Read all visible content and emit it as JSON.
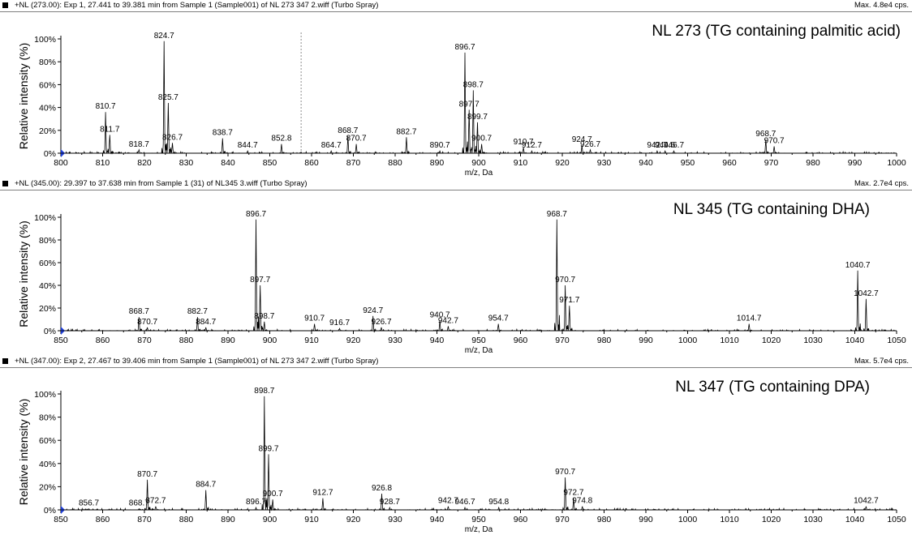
{
  "chart_data": [
    {
      "type": "line",
      "header": "+NL (273.00): Exp 1, 27.441 to 39.381 min from Sample 1 (Sample001) of NL 273 347 2.wiff (Turbo Spray)",
      "max_label": "Max. 4.8e4 cps.",
      "title": "NL 273 (TG containing palmitic acid)",
      "ylabel": "Relative intensity (%)",
      "xlabel": "m/z, Da",
      "xlim": [
        800,
        1000
      ],
      "xticks": [
        800,
        810,
        820,
        830,
        840,
        850,
        860,
        870,
        880,
        890,
        900,
        910,
        920,
        930,
        940,
        950,
        960,
        970,
        980,
        990,
        1000
      ],
      "ylim": [
        0,
        100
      ],
      "yticks": [
        "0%",
        "20%",
        "40%",
        "60%",
        "80%",
        "100%"
      ],
      "marker_x": 857.5,
      "peaks": [
        {
          "x": 810.7,
          "y": 36,
          "label": "810.7"
        },
        {
          "x": 811.7,
          "y": 16,
          "label": "811.7"
        },
        {
          "x": 818.7,
          "y": 3,
          "label": "818.7"
        },
        {
          "x": 824.7,
          "y": 98,
          "label": "824.7"
        },
        {
          "x": 825.7,
          "y": 44,
          "label": "825.7"
        },
        {
          "x": 826.7,
          "y": 9,
          "label": "826.7"
        },
        {
          "x": 838.7,
          "y": 13,
          "label": "838.7"
        },
        {
          "x": 844.7,
          "y": 2,
          "label": "844.7"
        },
        {
          "x": 852.8,
          "y": 8,
          "label": "852.8"
        },
        {
          "x": 864.7,
          "y": 2,
          "label": "864.7"
        },
        {
          "x": 868.7,
          "y": 15,
          "label": "868.7"
        },
        {
          "x": 870.7,
          "y": 8,
          "label": "870.7"
        },
        {
          "x": 882.7,
          "y": 14,
          "label": "882.7"
        },
        {
          "x": 890.7,
          "y": 2,
          "label": "890.7"
        },
        {
          "x": 896.7,
          "y": 88,
          "label": "896.7"
        },
        {
          "x": 897.7,
          "y": 38,
          "label": "897.7"
        },
        {
          "x": 898.7,
          "y": 55,
          "label": "898.7"
        },
        {
          "x": 899.7,
          "y": 27,
          "label": "899.7"
        },
        {
          "x": 900.7,
          "y": 8,
          "label": "900.7"
        },
        {
          "x": 910.7,
          "y": 5,
          "label": "910.7"
        },
        {
          "x": 912.7,
          "y": 2,
          "label": "912.7"
        },
        {
          "x": 924.7,
          "y": 7,
          "label": "924.7"
        },
        {
          "x": 926.7,
          "y": 3,
          "label": "926.7"
        },
        {
          "x": 942.7,
          "y": 2,
          "label": "942.7"
        },
        {
          "x": 944.6,
          "y": 2,
          "label": "944.6"
        },
        {
          "x": 946.7,
          "y": 2,
          "label": "946.7"
        },
        {
          "x": 968.7,
          "y": 12,
          "label": "968.7"
        },
        {
          "x": 970.7,
          "y": 6,
          "label": "970.7"
        }
      ]
    },
    {
      "type": "line",
      "header": "+NL (345.00): 29.397 to 37.638 min from Sample 1 (31) of NL345 3.wiff (Turbo Spray)",
      "max_label": "Max. 2.7e4 cps.",
      "title": "NL 345 (TG containing DHA)",
      "ylabel": "Relative intensity (%)",
      "xlabel": "m/z, Da",
      "xlim": [
        850,
        1050
      ],
      "xticks": [
        850,
        860,
        870,
        880,
        890,
        900,
        910,
        920,
        930,
        940,
        950,
        960,
        970,
        980,
        990,
        1000,
        1010,
        1020,
        1030,
        1040,
        1050
      ],
      "ylim": [
        0,
        100
      ],
      "yticks": [
        "0%",
        "20%",
        "40%",
        "60%",
        "80%",
        "100%"
      ],
      "peaks": [
        {
          "x": 868.7,
          "y": 12,
          "label": "868.7"
        },
        {
          "x": 870.7,
          "y": 3,
          "label": "870.7"
        },
        {
          "x": 882.7,
          "y": 12,
          "label": "882.7"
        },
        {
          "x": 884.7,
          "y": 3,
          "label": "884.7"
        },
        {
          "x": 896.7,
          "y": 98,
          "label": "896.7"
        },
        {
          "x": 897.7,
          "y": 40,
          "label": "897.7"
        },
        {
          "x": 898.7,
          "y": 8,
          "label": "898.7"
        },
        {
          "x": 910.7,
          "y": 6,
          "label": "910.7"
        },
        {
          "x": 916.7,
          "y": 2,
          "label": "916.7"
        },
        {
          "x": 924.7,
          "y": 13,
          "label": "924.7"
        },
        {
          "x": 926.7,
          "y": 3,
          "label": "926.7"
        },
        {
          "x": 940.7,
          "y": 9,
          "label": "940.7"
        },
        {
          "x": 942.7,
          "y": 4,
          "label": "942.7"
        },
        {
          "x": 954.7,
          "y": 6,
          "label": "954.7"
        },
        {
          "x": 968.7,
          "y": 98,
          "label": "968.7"
        },
        {
          "x": 970.7,
          "y": 40,
          "label": "970.7"
        },
        {
          "x": 971.7,
          "y": 22,
          "label": "971.7"
        },
        {
          "x": 1014.7,
          "y": 6,
          "label": "1014.7"
        },
        {
          "x": 1040.7,
          "y": 53,
          "label": "1040.7"
        },
        {
          "x": 1042.7,
          "y": 28,
          "label": "1042.7"
        }
      ]
    },
    {
      "type": "line",
      "header": "+NL (347.00): Exp 2, 27.467 to 39.406 min from Sample 1 (Sample001) of NL 273 347 2.wiff (Turbo Spray)",
      "max_label": "Max. 5.7e4 cps.",
      "title": "NL 347 (TG containing DPA)",
      "ylabel": "Relative intensity (%)",
      "xlabel": "m/z, Da",
      "xlim": [
        850,
        1050
      ],
      "xticks": [
        850,
        860,
        870,
        880,
        890,
        900,
        910,
        920,
        930,
        940,
        950,
        960,
        970,
        980,
        990,
        1000,
        1010,
        1020,
        1030,
        1040,
        1050
      ],
      "ylim": [
        0,
        100
      ],
      "yticks": [
        "0%",
        "20%",
        "40%",
        "60%",
        "80%",
        "100%"
      ],
      "peaks": [
        {
          "x": 856.7,
          "y": 1,
          "label": "856.7"
        },
        {
          "x": 868.7,
          "y": 1,
          "label": "868.7"
        },
        {
          "x": 870.7,
          "y": 26,
          "label": "870.7"
        },
        {
          "x": 872.7,
          "y": 3,
          "label": "872.7"
        },
        {
          "x": 884.7,
          "y": 17,
          "label": "884.7"
        },
        {
          "x": 896.7,
          "y": 2,
          "label": "896.7"
        },
        {
          "x": 898.7,
          "y": 98,
          "label": "898.7"
        },
        {
          "x": 899.7,
          "y": 48,
          "label": "899.7"
        },
        {
          "x": 900.7,
          "y": 9,
          "label": "900.7"
        },
        {
          "x": 912.7,
          "y": 10,
          "label": "912.7"
        },
        {
          "x": 926.8,
          "y": 14,
          "label": "926.8"
        },
        {
          "x": 928.7,
          "y": 2,
          "label": "928.7"
        },
        {
          "x": 942.7,
          "y": 3,
          "label": "942.7"
        },
        {
          "x": 946.7,
          "y": 2,
          "label": "946.7"
        },
        {
          "x": 954.8,
          "y": 2,
          "label": "954.8"
        },
        {
          "x": 970.7,
          "y": 28,
          "label": "970.7"
        },
        {
          "x": 972.7,
          "y": 10,
          "label": "972.7"
        },
        {
          "x": 974.8,
          "y": 3,
          "label": "974.8"
        },
        {
          "x": 1042.7,
          "y": 3,
          "label": "1042.7"
        }
      ]
    }
  ]
}
